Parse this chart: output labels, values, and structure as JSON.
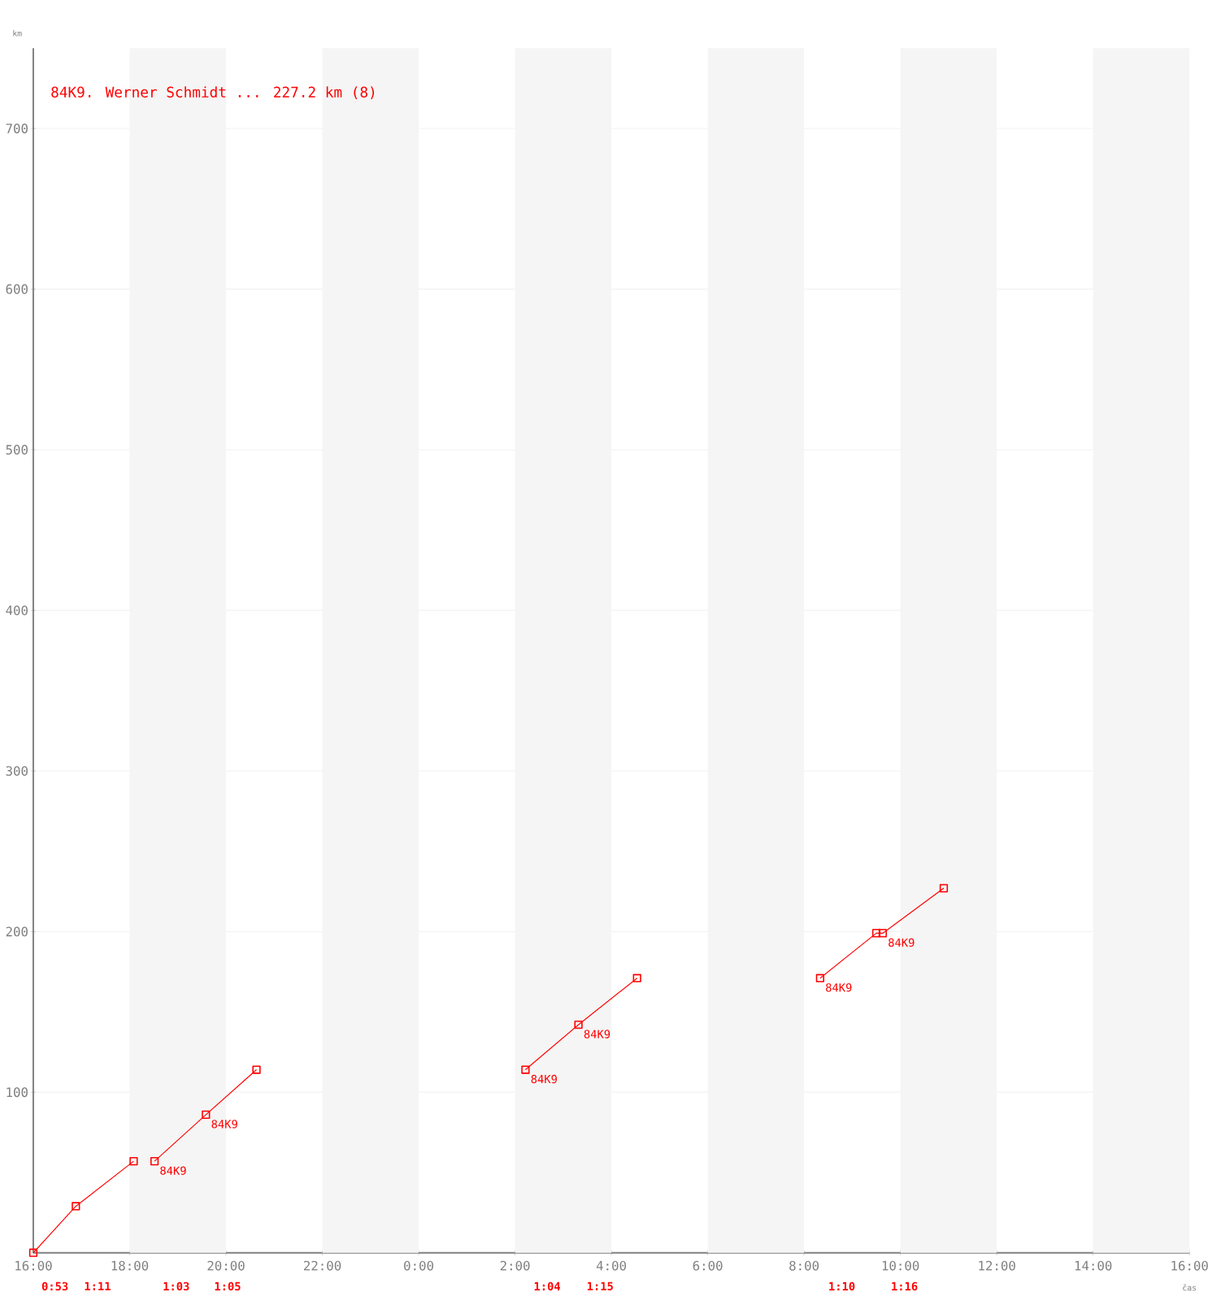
{
  "chart_data": {
    "type": "line",
    "title": "84K9. Werner Schmidt ... 227.2 km (8)",
    "xlabel": "čas",
    "ylabel": "km",
    "xlim": [
      "2000-01-01T16:00",
      "2000-01-02T16:00"
    ],
    "ylim": [
      0,
      750
    ],
    "xticks": [
      {
        "value": "2000-01-01T16:00",
        "label": "16:00"
      },
      {
        "value": "2000-01-01T18:00",
        "label": "18:00"
      },
      {
        "value": "2000-01-01T20:00",
        "label": "20:00"
      },
      {
        "value": "2000-01-01T22:00",
        "label": "22:00"
      },
      {
        "value": "2000-01-02T00:00",
        "label": "0:00"
      },
      {
        "value": "2000-01-02T02:00",
        "label": "2:00"
      },
      {
        "value": "2000-01-02T04:00",
        "label": "4:00"
      },
      {
        "value": "2000-01-02T06:00",
        "label": "6:00"
      },
      {
        "value": "2000-01-02T08:00",
        "label": "8:00"
      },
      {
        "value": "2000-01-02T10:00",
        "label": "10:00"
      },
      {
        "value": "2000-01-02T12:00",
        "label": "12:00"
      },
      {
        "value": "2000-01-02T14:00",
        "label": "14:00"
      },
      {
        "value": "2000-01-02T16:00",
        "label": "16:00"
      }
    ],
    "yticks": [
      100,
      200,
      300,
      400,
      500,
      600,
      700
    ],
    "grid": "y",
    "marker": "square",
    "line_style": "solid",
    "series": [
      {
        "color": "#ff0000",
        "x": [
          "2000-01-01T16:00",
          "2000-01-01T16:53",
          "2000-01-01T18:05",
          null,
          "2000-01-01T18:31",
          "2000-01-01T19:35",
          "2000-01-01T20:38",
          null,
          "2000-01-02T02:13",
          "2000-01-02T03:19",
          "2000-01-02T04:32",
          null,
          "2000-01-02T08:20",
          "2000-01-02T09:30",
          "2000-01-02T09:38",
          "2000-01-02T10:54"
        ],
        "values": [
          0,
          29,
          57,
          null,
          57,
          86,
          114,
          null,
          114,
          142,
          171,
          null,
          171,
          199,
          199,
          227
        ]
      }
    ],
    "bands": [
      {
        "axis": "x",
        "from": "2000-01-01T18:00",
        "to": "2000-01-01T20:00",
        "color": "#f5f5f5"
      },
      {
        "axis": "x",
        "from": "2000-01-01T22:00",
        "to": "2000-01-02T00:00",
        "color": "#f5f5f5"
      },
      {
        "axis": "x",
        "from": "2000-01-02T02:00",
        "to": "2000-01-02T04:00",
        "color": "#f5f5f5"
      },
      {
        "axis": "x",
        "from": "2000-01-02T06:00",
        "to": "2000-01-02T08:00",
        "color": "#f5f5f5"
      },
      {
        "axis": "x",
        "from": "2000-01-02T10:00",
        "to": "2000-01-02T12:00",
        "color": "#f5f5f5"
      },
      {
        "axis": "x",
        "from": "2000-01-02T14:00",
        "to": "2000-01-02T16:00",
        "color": "#f5f5f5"
      }
    ],
    "annotations": [
      {
        "text": "84K9",
        "x": "2000-01-01T18:31",
        "y": 57
      },
      {
        "text": "84K9",
        "x": "2000-01-01T19:35",
        "y": 86
      },
      {
        "text": "84K9",
        "x": "2000-01-02T02:13",
        "y": 114
      },
      {
        "text": "84K9",
        "x": "2000-01-02T03:19",
        "y": 142
      },
      {
        "text": "84K9",
        "x": "2000-01-02T08:20",
        "y": 171
      },
      {
        "text": "84K9",
        "x": "2000-01-02T09:38",
        "y": 199
      },
      "0:53",
      "1:11",
      "1:03",
      "1:05",
      "1:04",
      "1:15",
      "1:10",
      "1:16"
    ]
  }
}
